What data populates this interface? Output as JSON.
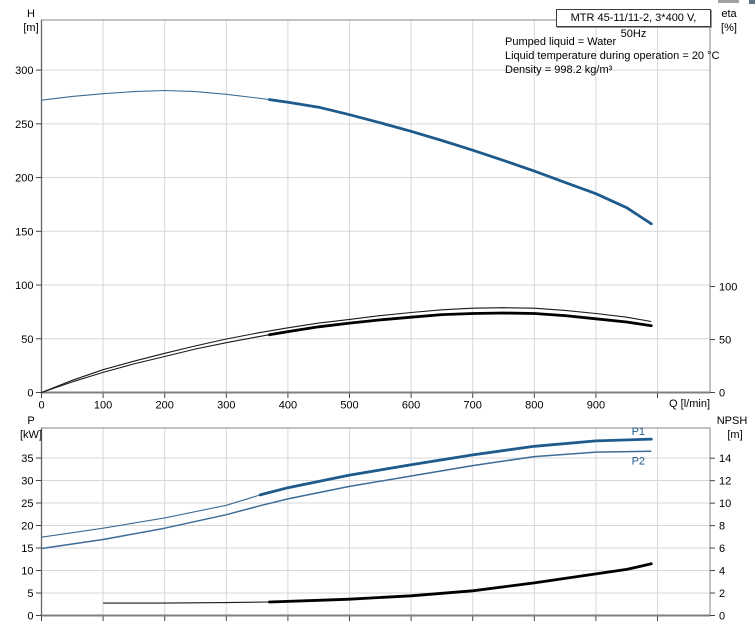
{
  "title_box": {
    "label": "MTR 45-11/11-2, 3*400 V, 50Hz"
  },
  "info_lines": [
    "Pumped liquid = Water",
    "Liquid temperature during operation = 20 °C",
    "Density = 998.2 kg/m³"
  ],
  "colors": {
    "curve_blue": "#1E5A8C",
    "curve_blue_thin": "#3d6d96",
    "curve_black": "#000000",
    "curve_black_thin": "#1a1a1a",
    "grid": "#d7d7d7",
    "frame": "#999999",
    "axis_dark": "#444444",
    "text": "#000000"
  },
  "chart_data": [
    {
      "type": "line",
      "title": "MTR 45-11/11-2, 3*400 V, 50Hz",
      "xlabel": "Q [l/min]",
      "corner": {
        "left_title": "H",
        "left_unit": "[m]",
        "right_title": "eta",
        "right_unit": "[%]"
      },
      "xlim": [
        0,
        1085
      ],
      "ylim_left": [
        0,
        347
      ],
      "ylim_right_eta": [
        0,
        100
      ],
      "x_ticks": [
        0,
        100,
        200,
        300,
        400,
        500,
        600,
        700,
        800,
        900,
        1000
      ],
      "x_tick_labels": [
        "0",
        "100",
        "200",
        "300",
        "400",
        "500",
        "600",
        "700",
        "800",
        "900",
        ""
      ],
      "left_ticks": [
        0,
        50,
        100,
        150,
        200,
        250,
        300
      ],
      "right_ticks": [
        0,
        50,
        100
      ],
      "grid": true,
      "series": [
        {
          "name": "H-Q-curve",
          "axis": "left",
          "color": "blue",
          "split_q": 370,
          "points": [
            [
              0,
              272
            ],
            [
              50,
              275.5
            ],
            [
              100,
              278
            ],
            [
              150,
              280
            ],
            [
              200,
              281
            ],
            [
              250,
              280
            ],
            [
              300,
              277.5
            ],
            [
              350,
              274
            ],
            [
              370,
              272.5
            ],
            [
              400,
              270
            ],
            [
              450,
              265.5
            ],
            [
              500,
              258.5
            ],
            [
              550,
              251
            ],
            [
              600,
              243
            ],
            [
              650,
              234.5
            ],
            [
              700,
              225.5
            ],
            [
              750,
              216
            ],
            [
              800,
              206
            ],
            [
              850,
              195.5
            ],
            [
              900,
              185
            ],
            [
              950,
              172
            ],
            [
              990,
              157
            ]
          ]
        },
        {
          "name": "eta-upper-curve",
          "axis": "right",
          "color": "black",
          "points": [
            [
              0,
              0
            ],
            [
              50,
              11.5
            ],
            [
              100,
              21.5
            ],
            [
              150,
              29.5
            ],
            [
              200,
              37
            ],
            [
              250,
              44
            ],
            [
              300,
              50.5
            ],
            [
              350,
              56
            ],
            [
              400,
              61
            ],
            [
              450,
              65.5
            ],
            [
              500,
              69
            ],
            [
              550,
              72.5
            ],
            [
              600,
              75.5
            ],
            [
              650,
              78
            ],
            [
              700,
              79.5
            ],
            [
              750,
              80
            ],
            [
              800,
              79.5
            ],
            [
              850,
              77.5
            ],
            [
              900,
              74.5
            ],
            [
              950,
              71
            ],
            [
              990,
              67
            ]
          ]
        },
        {
          "name": "eta-lower-curve",
          "axis": "right",
          "color": "black",
          "split_q": 370,
          "points": [
            [
              0,
              0
            ],
            [
              50,
              10
            ],
            [
              100,
              19
            ],
            [
              150,
              27
            ],
            [
              200,
              34
            ],
            [
              250,
              41
            ],
            [
              300,
              47
            ],
            [
              350,
              52.5
            ],
            [
              370,
              54.5
            ],
            [
              400,
              57.5
            ],
            [
              450,
              62
            ],
            [
              500,
              65.5
            ],
            [
              550,
              68.5
            ],
            [
              600,
              71
            ],
            [
              650,
              73.5
            ],
            [
              700,
              74.5
            ],
            [
              750,
              75
            ],
            [
              800,
              74.5
            ],
            [
              850,
              72.5
            ],
            [
              900,
              69.5
            ],
            [
              950,
              66.5
            ],
            [
              990,
              63
            ]
          ]
        }
      ]
    },
    {
      "type": "line",
      "xlabel": "",
      "corner": {
        "left_title": "P",
        "left_unit": "[kW]",
        "right_title": "NPSH",
        "right_unit": "[m]"
      },
      "xlim": [
        0,
        1085
      ],
      "ylim_left_kW": [
        0,
        41
      ],
      "ylim_right_m": [
        0,
        16.6
      ],
      "x_ticks": [
        0,
        100,
        200,
        300,
        400,
        500,
        600,
        700,
        800,
        900,
        1000
      ],
      "x_tick_labels": null,
      "left_ticks": [
        0,
        5,
        10,
        15,
        20,
        25,
        30,
        35
      ],
      "right_ticks": [
        0,
        2,
        4,
        6,
        8,
        10,
        12,
        14
      ],
      "grid": true,
      "series": [
        {
          "name": "P1-curve",
          "axis": "left",
          "color": "blue",
          "split_q": 355,
          "label": "P1",
          "label_dx": -13,
          "label_dy": -4,
          "points": [
            [
              0,
              17.4
            ],
            [
              100,
              19.4
            ],
            [
              200,
              21.7
            ],
            [
              300,
              24.5
            ],
            [
              355,
              26.8
            ],
            [
              400,
              28.4
            ],
            [
              500,
              31.2
            ],
            [
              600,
              33.5
            ],
            [
              700,
              35.7
            ],
            [
              800,
              37.6
            ],
            [
              900,
              38.8
            ],
            [
              990,
              39.2
            ]
          ]
        },
        {
          "name": "P2-curve",
          "axis": "left",
          "color": "blue",
          "label": "P2",
          "label_dx": -13,
          "label_dy": 13,
          "points": [
            [
              0,
              14.9
            ],
            [
              100,
              16.9
            ],
            [
              200,
              19.4
            ],
            [
              300,
              22.4
            ],
            [
              355,
              24.4
            ],
            [
              400,
              25.9
            ],
            [
              500,
              28.7
            ],
            [
              600,
              31
            ],
            [
              700,
              33.3
            ],
            [
              800,
              35.3
            ],
            [
              900,
              36.3
            ],
            [
              990,
              36.5
            ]
          ]
        },
        {
          "name": "NPSH-curve",
          "axis": "right",
          "color": "black",
          "split_q": 370,
          "points": [
            [
              100,
              1.1
            ],
            [
              200,
              1.1
            ],
            [
              300,
              1.15
            ],
            [
              370,
              1.2
            ],
            [
              450,
              1.35
            ],
            [
              500,
              1.45
            ],
            [
              600,
              1.75
            ],
            [
              700,
              2.2
            ],
            [
              800,
              2.9
            ],
            [
              900,
              3.7
            ],
            [
              950,
              4.1
            ],
            [
              990,
              4.6
            ]
          ]
        }
      ]
    }
  ]
}
